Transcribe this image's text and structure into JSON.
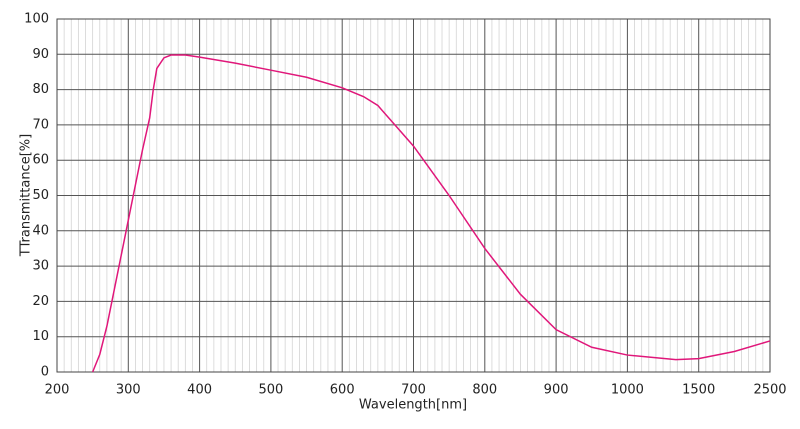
{
  "chart_data": {
    "type": "line",
    "x_label": "Wavelength[nm]",
    "y_label": "TTransmittance[%]",
    "x": [
      250,
      260,
      270,
      280,
      290,
      300,
      310,
      320,
      330,
      335,
      340,
      350,
      360,
      380,
      400,
      450,
      500,
      550,
      600,
      630,
      650,
      700,
      750,
      800,
      850,
      900,
      950,
      1000,
      1340,
      1500,
      2000,
      2500
    ],
    "series": [
      {
        "name": "Transmittance",
        "color": "#e0177a",
        "values": [
          0,
          5,
          13,
          23,
          33,
          43,
          53,
          63,
          72,
          80,
          86,
          89,
          89.8,
          89.8,
          89.2,
          87.5,
          85.5,
          83.5,
          80.5,
          78,
          75.5,
          64,
          50,
          35,
          22,
          12,
          7,
          4.8,
          3.5,
          3.8,
          5.8,
          8.8
        ]
      }
    ],
    "xlim": [
      200,
      2500
    ],
    "xticks": [
      200,
      300,
      400,
      500,
      600,
      700,
      800,
      900,
      1000,
      1500,
      2500
    ],
    "ylim": [
      0,
      100
    ],
    "yticks": [
      0,
      10,
      20,
      30,
      40,
      50,
      60,
      70,
      80,
      90,
      100
    ],
    "grid": true
  }
}
